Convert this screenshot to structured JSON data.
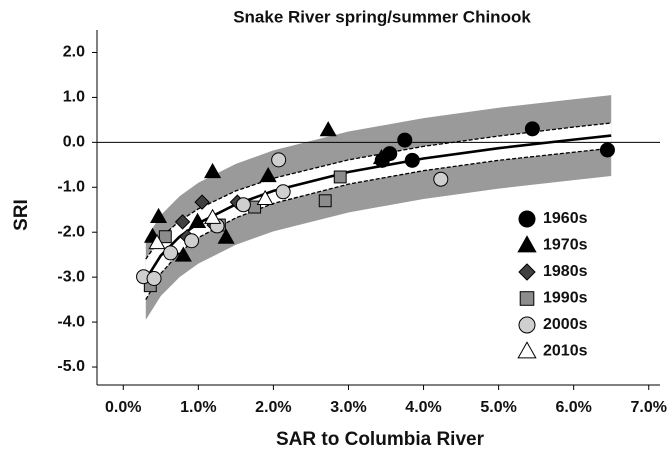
{
  "chart_data": {
    "type": "scatter",
    "title": "Snake River spring/summer Chinook",
    "x_label": "SAR to Columbia River",
    "y_label": "SRI",
    "xlim": [
      -0.35,
      7.15
    ],
    "ylim": [
      -5.4,
      2.5
    ],
    "xticks": [
      {
        "value": 0,
        "label": "0.0%"
      },
      {
        "value": 1,
        "label": "1.0%"
      },
      {
        "value": 2,
        "label": "2.0%"
      },
      {
        "value": 3,
        "label": "3.0%"
      },
      {
        "value": 4,
        "label": "4.0%"
      },
      {
        "value": 5,
        "label": "5.0%"
      },
      {
        "value": 6,
        "label": "6.0%"
      },
      {
        "value": 7,
        "label": "7.0%"
      }
    ],
    "yticks": [
      {
        "value": 2,
        "label": "2.0"
      },
      {
        "value": 1,
        "label": "1.0"
      },
      {
        "value": 0,
        "label": "0.0"
      },
      {
        "value": -1,
        "label": "-1.0"
      },
      {
        "value": -2,
        "label": "-2.0"
      },
      {
        "value": -3,
        "label": "-3.0"
      },
      {
        "value": -4,
        "label": "-4.0"
      },
      {
        "value": -5,
        "label": "-5.0"
      }
    ],
    "hline": 0,
    "fit": {
      "x": [
        0.3,
        0.5,
        0.75,
        1,
        1.5,
        2,
        3,
        4,
        5,
        6,
        6.5
      ],
      "y": [
        -3.05,
        -2.52,
        -2.1,
        -1.8,
        -1.38,
        -1.08,
        -0.66,
        -0.36,
        -0.13,
        0.06,
        0.15
      ],
      "band_upper": [
        -2.15,
        -1.62,
        -1.2,
        -0.9,
        -0.48,
        -0.18,
        0.24,
        0.54,
        0.77,
        0.96,
        1.05
      ],
      "band_lower": [
        -3.95,
        -3.42,
        -3.0,
        -2.7,
        -2.28,
        -1.98,
        -1.56,
        -1.26,
        -1.03,
        -0.84,
        -0.75
      ],
      "ci_upper": [
        -2.6,
        -2.12,
        -1.75,
        -1.48,
        -1.08,
        -0.8,
        -0.39,
        -0.09,
        0.14,
        0.34,
        0.43
      ],
      "ci_lower": [
        -3.5,
        -2.92,
        -2.45,
        -2.12,
        -1.68,
        -1.36,
        -0.93,
        -0.63,
        -0.4,
        -0.22,
        -0.13
      ],
      "band_color": "#9a9a9a"
    },
    "series": [
      {
        "name": "1960s",
        "marker": "circle",
        "color": "#000000",
        "x": [
          3.75,
          3.55,
          3.45,
          3.85,
          5.45,
          6.45
        ],
        "y": [
          0.05,
          -0.25,
          -0.4,
          -0.4,
          0.3,
          -0.17
        ]
      },
      {
        "name": "1970s",
        "marker": "triangle",
        "color": "#000000",
        "x": [
          2.73,
          3.44,
          1.19,
          1.93,
          0.47,
          0.39,
          0.8,
          1.37,
          0.99
        ],
        "y": [
          0.27,
          -0.35,
          -0.66,
          -0.75,
          -1.66,
          -2.1,
          -2.52,
          -2.12,
          -1.77
        ]
      },
      {
        "name": "1980s",
        "marker": "diamond",
        "color": "#404040",
        "x": [
          1.05,
          0.79,
          0.85,
          1.52,
          1.21
        ],
        "y": [
          -1.33,
          -1.77,
          -2.1,
          -1.33,
          -1.84
        ]
      },
      {
        "name": "1990s",
        "marker": "square",
        "color": "#8c8c8c",
        "x": [
          0.36,
          0.56,
          1.75,
          2.69,
          2.89,
          1.28
        ],
        "y": [
          -3.19,
          -2.1,
          -1.44,
          -1.3,
          -0.77,
          -1.84
        ]
      },
      {
        "name": "2000s",
        "marker": "circle",
        "color": "#cfcfcf",
        "x": [
          0.27,
          0.41,
          0.63,
          0.91,
          1.6,
          2.07,
          2.13,
          4.23,
          1.25
        ],
        "y": [
          -2.99,
          -3.03,
          -2.46,
          -2.19,
          -1.39,
          -0.39,
          -1.1,
          -0.82,
          -1.86
        ]
      },
      {
        "name": "2010s",
        "marker": "triangle",
        "color": "#ffffff",
        "x": [
          0.45,
          1.19,
          1.89
        ],
        "y": [
          -2.24,
          -1.68,
          -1.26
        ]
      }
    ],
    "legend_position": "right"
  }
}
